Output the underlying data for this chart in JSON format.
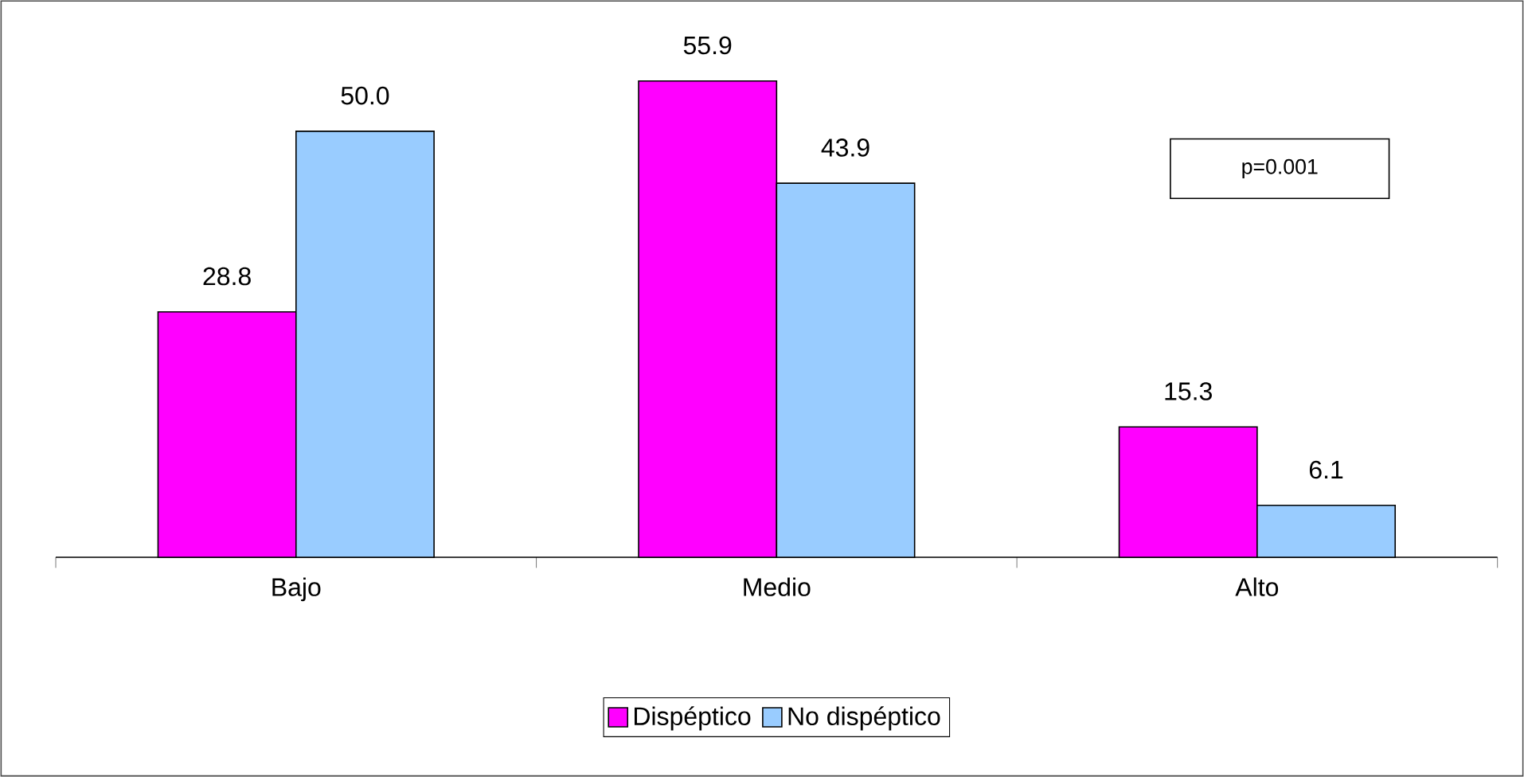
{
  "chart_data": {
    "type": "bar",
    "categories": [
      "Bajo",
      "Medio",
      "Alto"
    ],
    "series": [
      {
        "name": "Dispéptico",
        "color": "#ff00ff",
        "values": [
          28.8,
          55.9,
          15.3
        ],
        "value_labels": [
          "28.8",
          "55.9",
          "15.3"
        ]
      },
      {
        "name": "No dispéptico",
        "color": "#99ccff",
        "values": [
          50.0,
          43.9,
          6.1
        ],
        "value_labels": [
          "50.0",
          "43.9",
          "6.1"
        ]
      }
    ],
    "annotations": [
      "p=0.001"
    ],
    "legend": "bottom"
  }
}
